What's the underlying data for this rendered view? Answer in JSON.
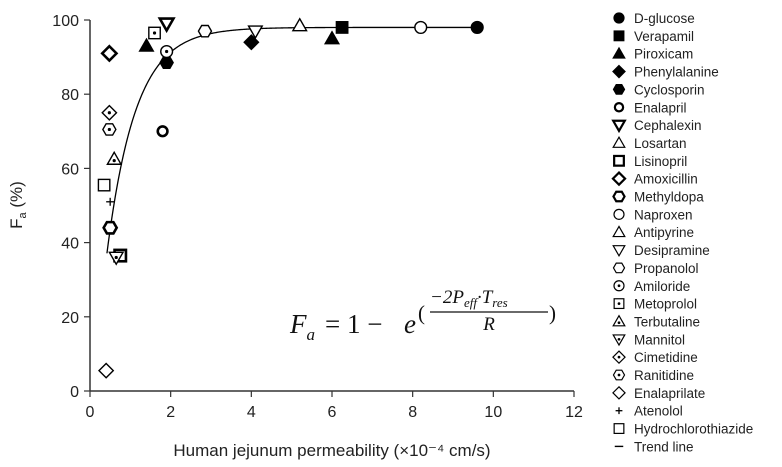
{
  "chart_data": {
    "type": "scatter",
    "title": "",
    "xlabel": "Human jejunum permeability (×10⁻⁴ cm/s)",
    "ylabel_main": "F",
    "ylabel_sub": "a",
    "ylabel_unit": " (%)",
    "xlim": [
      0,
      12
    ],
    "ylim": [
      0,
      100
    ],
    "xticks": [
      0,
      2,
      4,
      6,
      8,
      10,
      12
    ],
    "yticks": [
      0,
      20,
      40,
      60,
      80,
      100
    ],
    "grid": false,
    "legend_position": "right-outside",
    "formula": {
      "lhs_main": "F",
      "lhs_sub": "a",
      "equals": "= 1 −",
      "base": "e",
      "numerator_main": "−2P",
      "numerator_peff_sub": "eff",
      "numerator_dot": "·",
      "numerator_t_main": "T",
      "numerator_t_sub": "res",
      "denominator": "R",
      "open_paren": "(",
      "close_paren": ")"
    },
    "series": [
      {
        "name": "D-glucose",
        "marker": "circle-filled",
        "points": [
          [
            9.6,
            98
          ]
        ]
      },
      {
        "name": "Verapamil",
        "marker": "square-filled",
        "points": [
          [
            6.25,
            98
          ]
        ]
      },
      {
        "name": "Piroxicam",
        "marker": "triangle-filled",
        "points": [
          [
            6.0,
            95
          ],
          [
            1.4,
            93
          ]
        ]
      },
      {
        "name": "Phenylalanine",
        "marker": "diamond-filled",
        "points": [
          [
            4.0,
            94
          ]
        ]
      },
      {
        "name": "Cyclosporin",
        "marker": "hexagon-filled",
        "points": [
          [
            1.9,
            88.5
          ]
        ]
      },
      {
        "name": "Enalapril",
        "marker": "circle-bold",
        "points": [
          [
            1.8,
            70
          ]
        ]
      },
      {
        "name": "Cephalexin",
        "marker": "triangle-down-bold",
        "points": [
          [
            1.9,
            99
          ]
        ]
      },
      {
        "name": "Losartan",
        "marker": "triangle-open",
        "points": []
      },
      {
        "name": "Lisinopril",
        "marker": "square-bold",
        "points": [
          [
            0.75,
            36.5
          ]
        ]
      },
      {
        "name": "Amoxicillin",
        "marker": "diamond-bold",
        "points": [
          [
            0.48,
            91
          ]
        ]
      },
      {
        "name": "Methyldopa",
        "marker": "hexagon-bold",
        "points": [
          [
            0.5,
            44
          ]
        ]
      },
      {
        "name": "Naproxen",
        "marker": "circle-open",
        "points": [
          [
            8.2,
            98
          ]
        ]
      },
      {
        "name": "Antipyrine",
        "marker": "triangle-open",
        "points": [
          [
            5.2,
            98.5
          ]
        ]
      },
      {
        "name": "Desipramine",
        "marker": "triangle-down-open",
        "points": [
          [
            4.1,
            97
          ]
        ]
      },
      {
        "name": "Propanolol",
        "marker": "hexagon-open",
        "points": [
          [
            2.85,
            97
          ]
        ]
      },
      {
        "name": "Amiloride",
        "marker": "circle-dot",
        "points": [
          [
            1.9,
            91.5
          ]
        ]
      },
      {
        "name": "Metoprolol",
        "marker": "square-dot",
        "points": [
          [
            1.6,
            96.5
          ]
        ]
      },
      {
        "name": "Terbutaline",
        "marker": "triangle-dot",
        "points": [
          [
            0.6,
            62.5
          ]
        ]
      },
      {
        "name": "Mannitol",
        "marker": "triangle-down-dot",
        "points": [
          [
            0.65,
            36
          ]
        ]
      },
      {
        "name": "Cimetidine",
        "marker": "diamond-dot",
        "points": [
          [
            0.48,
            75
          ]
        ]
      },
      {
        "name": "Ranitidine",
        "marker": "hexagon-dot",
        "points": [
          [
            0.48,
            70.5
          ]
        ]
      },
      {
        "name": "Enalaprilate",
        "marker": "diamond-open",
        "points": [
          [
            0.4,
            5.5
          ]
        ]
      },
      {
        "name": "Atenolol",
        "marker": "plus",
        "points": [
          [
            0.5,
            51
          ]
        ]
      },
      {
        "name": "Hydrochlorothiazide",
        "marker": "square-open",
        "points": [
          [
            0.35,
            55.5
          ]
        ]
      },
      {
        "name": "Trend line",
        "marker": "line",
        "points": []
      }
    ]
  }
}
